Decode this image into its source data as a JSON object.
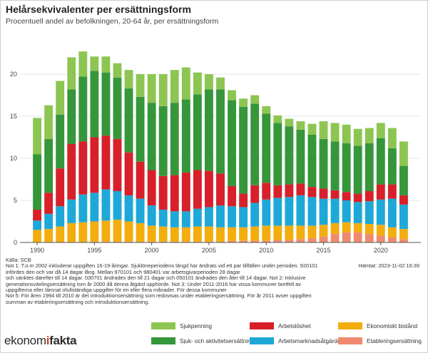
{
  "title": "Helårsekvivalenter per ersättningsform",
  "subtitle": "Procentuell andel av befolkningen, 20-64 år, per ersättningsform",
  "source": "Källa: SCB",
  "fetched": "Hämtat: 2023-11-02 16:39",
  "notes": [
    "Not 1: T.o.m 2002 inkluderar uppgiften 16-19-åringar. Sjuklöneperiodens längd har ändrats vid ett par tillfällen under perioden. 920101",
    "infördes den och var då 14 dagar lång. Mellan 970101 och 980401 var arbetsgivarperioden 28 dagar",
    "och sänktes därefter till 14 dagar. 030701 ändrades den till 21 dagar och 050101 ändrades den åter till 14 dagar. Not 2: Inklusive",
    "generationsväxlingsersättning tom år 2000 då denna åtgärd upphörde. Not 3: Under 2011-2016 har vissa kommuner bortfell av",
    "uppgifterna eller lämnat ofullständiga uppgifter för en eller flera månader. För dessa kommuner",
    "Not 5: För åren 1994 till 2010 är det introduktionsersättning som redovisas under etableringsersättning. För år 2011 avser uppgiften",
    "summan av etableringsersättning och introduktionsersättning."
  ],
  "logo": {
    "part1": "ekonom",
    "slash": "i",
    "part2": "fakta"
  },
  "colors": {
    "sjukpenning": "#8dc552",
    "sjuk_aktivitet": "#36963a",
    "arbetsloshet": "#d7202a",
    "arbetsmarknad": "#1ea8d8",
    "ekonomiskt_bistand": "#f2ad0f",
    "etablering": "#ef8a6e",
    "grid": "#e6e6e6",
    "axis": "#555555"
  },
  "chart_data": {
    "type": "bar",
    "stacked": true,
    "ylim": [
      0,
      25
    ],
    "yticks": [
      0,
      5,
      10,
      15,
      20
    ],
    "xticks": [
      1990,
      1995,
      2000,
      2005,
      2010,
      2015,
      2020
    ],
    "xlim": [
      1988.5,
      2023.5
    ],
    "grid": true,
    "legend_position": "bottom",
    "categories": [
      1990,
      1991,
      1992,
      1993,
      1994,
      1995,
      1996,
      1997,
      1998,
      1999,
      2000,
      2001,
      2002,
      2003,
      2004,
      2005,
      2006,
      2007,
      2008,
      2009,
      2010,
      2011,
      2012,
      2013,
      2014,
      2015,
      2016,
      2017,
      2018,
      2019,
      2020,
      2021,
      2022
    ],
    "series": [
      {
        "name": "Etableringsersättning",
        "color_key": "etablering",
        "values": [
          0,
          0,
          0,
          0,
          0,
          0.1,
          0.1,
          0.1,
          0.1,
          0.1,
          0.1,
          0.1,
          0.1,
          0.1,
          0.1,
          0.1,
          0.1,
          0.2,
          0.2,
          0.2,
          0.2,
          0.3,
          0.3,
          0.4,
          0.5,
          0.7,
          1.0,
          1.2,
          1.2,
          1.0,
          0.8,
          0.6,
          0.4
        ]
      },
      {
        "name": "Ekonomiskt bistånd",
        "color_key": "ekonomiskt_bistand",
        "values": [
          1.5,
          1.6,
          1.9,
          2.3,
          2.4,
          2.4,
          2.5,
          2.6,
          2.4,
          2.2,
          1.9,
          1.8,
          1.7,
          1.7,
          1.8,
          1.8,
          1.7,
          1.6,
          1.6,
          1.7,
          1.8,
          1.7,
          1.7,
          1.6,
          1.5,
          1.4,
          1.3,
          1.2,
          1.1,
          1.2,
          1.3,
          1.2,
          1.2
        ]
      },
      {
        "name": "Arbetsmarknadsåtgärder",
        "color_key": "arbetsmarknad",
        "values": [
          1.1,
          1.8,
          2.4,
          2.8,
          3.3,
          3.4,
          3.7,
          3.4,
          3.1,
          2.9,
          2.4,
          2.0,
          1.9,
          1.9,
          2.1,
          2.3,
          2.6,
          2.5,
          2.4,
          2.8,
          3.1,
          3.3,
          3.4,
          3.6,
          3.4,
          3.1,
          2.9,
          2.6,
          2.5,
          2.7,
          3.0,
          3.4,
          2.9
        ]
      },
      {
        "name": "Arbetslöshet",
        "color_key": "arbetsloshet",
        "values": [
          1.3,
          2.5,
          4.5,
          6.6,
          6.3,
          6.6,
          6.4,
          6.2,
          5.1,
          4.4,
          4.2,
          4.0,
          4.3,
          4.6,
          4.6,
          4.3,
          3.8,
          2.4,
          1.6,
          2.1,
          2.0,
          1.5,
          1.5,
          1.4,
          1.2,
          1.2,
          1.0,
          1.0,
          1.0,
          1.2,
          1.8,
          1.7,
          1.1
        ]
      },
      {
        "name": "Sjuk- och aktivitetsersättning",
        "color_key": "sjuk_aktivitet",
        "values": [
          6.6,
          6.4,
          6.4,
          6.5,
          7.7,
          7.9,
          7.5,
          7.3,
          7.6,
          7.7,
          8.0,
          8.3,
          8.6,
          8.7,
          9.0,
          9.7,
          10.0,
          10.2,
          10.3,
          9.7,
          8.2,
          7.4,
          6.9,
          6.4,
          6.2,
          5.9,
          5.8,
          5.8,
          5.7,
          5.7,
          5.5,
          4.3,
          3.5
        ]
      },
      {
        "name": "Sjukpenning",
        "color_key": "sjukpenning",
        "values": [
          4.3,
          4.0,
          4.0,
          3.8,
          3.0,
          1.7,
          1.9,
          1.7,
          2.2,
          2.7,
          3.4,
          3.8,
          3.9,
          3.8,
          2.6,
          1.8,
          1.4,
          1.2,
          1.0,
          1.0,
          0.9,
          0.9,
          0.9,
          1.0,
          1.3,
          2.1,
          2.2,
          2.2,
          2.0,
          1.8,
          1.8,
          2.4,
          2.9
        ]
      }
    ],
    "legend": [
      {
        "label": "Sjukpenning",
        "color_key": "sjukpenning"
      },
      {
        "label": "Arbetslöshet",
        "color_key": "arbetsloshet"
      },
      {
        "label": "Ekonomiskt bistånd",
        "color_key": "ekonomiskt_bistand"
      },
      {
        "label": "Sjuk- och aktivitetsersättning",
        "color_key": "sjuk_aktivitet"
      },
      {
        "label": "Arbetsmarknadsåtgärder",
        "color_key": "arbetsmarknad"
      },
      {
        "label": "Etableringsersättning",
        "color_key": "etablering"
      }
    ]
  }
}
